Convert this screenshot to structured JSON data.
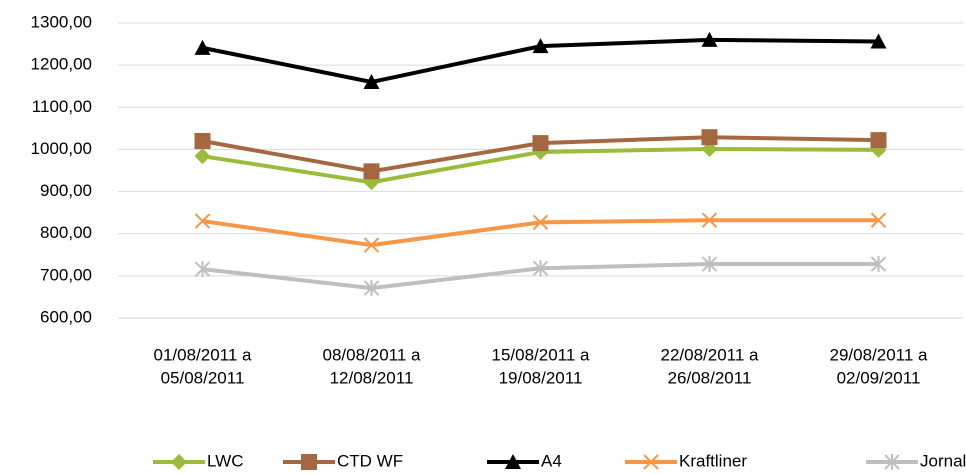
{
  "chart_data": {
    "type": "line",
    "categories": [
      [
        "01/08/2011 a",
        "05/08/2011"
      ],
      [
        "08/08/2011 a",
        "12/08/2011"
      ],
      [
        "15/08/2011 a",
        "19/08/2011"
      ],
      [
        "22/08/2011 a",
        "26/08/2011"
      ],
      [
        "29/08/2011 a",
        "02/09/2011"
      ]
    ],
    "series": [
      {
        "name": "LWC",
        "color": "#9bbb3b",
        "marker": "diamond",
        "values": [
          984,
          922,
          994,
          1001,
          999
        ]
      },
      {
        "name": "CTD WF",
        "color": "#a5673f",
        "marker": "square",
        "values": [
          1020,
          948,
          1015,
          1029,
          1022
        ]
      },
      {
        "name": "A4",
        "color": "#000000",
        "marker": "triangle",
        "values": [
          1241,
          1160,
          1245,
          1260,
          1256
        ]
      },
      {
        "name": "Kraftliner",
        "color": "#f79646",
        "marker": "x",
        "values": [
          830,
          773,
          827,
          832,
          832
        ]
      },
      {
        "name": "Jornal",
        "color": "#bfbfbf",
        "marker": "star",
        "values": [
          716,
          671,
          718,
          728,
          728
        ]
      }
    ],
    "ylim": [
      600,
      1300
    ],
    "yticks": [
      {
        "value": 600,
        "label": "600,00"
      },
      {
        "value": 700,
        "label": "700,00"
      },
      {
        "value": 800,
        "label": "800,00"
      },
      {
        "value": 900,
        "label": "900,00"
      },
      {
        "value": 1000,
        "label": "1000,00"
      },
      {
        "value": 1100,
        "label": "1100,00"
      },
      {
        "value": 1200,
        "label": "1200,00"
      },
      {
        "value": 1300,
        "label": "1300,00"
      }
    ],
    "grid": true
  }
}
